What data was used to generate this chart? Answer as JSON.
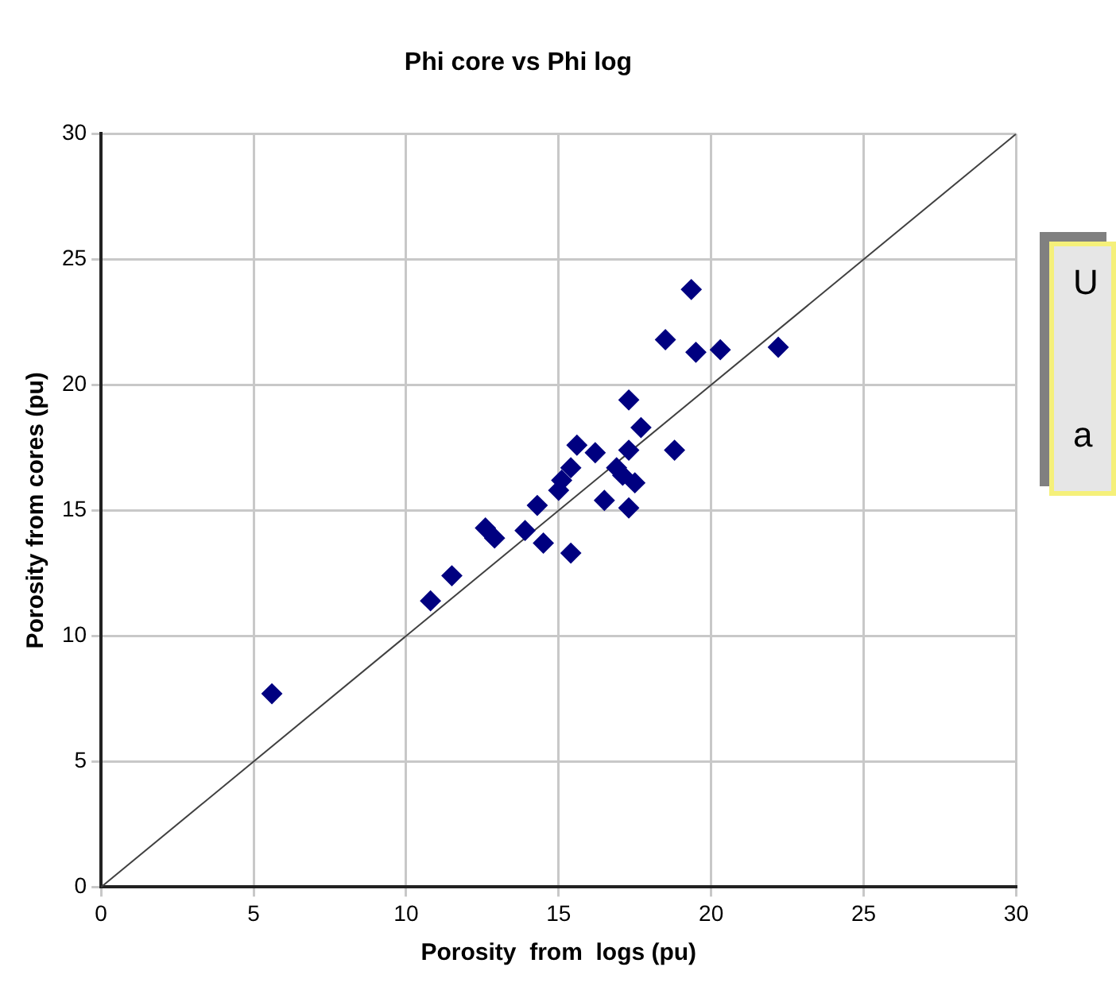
{
  "chart_data": {
    "type": "scatter",
    "title": "Phi core vs Phi log",
    "xlabel": "Porosity  from  logs (pu)",
    "ylabel": "Porosity from cores (pu)",
    "xlim": [
      0,
      30
    ],
    "ylim": [
      0,
      30
    ],
    "xticks": [
      0,
      5,
      10,
      15,
      20,
      25,
      30
    ],
    "yticks": [
      0,
      5,
      10,
      15,
      20,
      25,
      30
    ],
    "grid": true,
    "marker": "diamond",
    "annotations": [
      "U",
      "a"
    ],
    "series": [
      {
        "color": "#000080",
        "x": [
          5.6,
          10.8,
          11.5,
          12.6,
          12.9,
          13.9,
          14.3,
          14.5,
          15.4,
          15.0,
          15.1,
          15.4,
          15.6,
          16.2,
          16.5,
          16.9,
          17.1,
          17.3,
          17.3,
          17.5,
          17.3,
          17.7,
          18.8,
          18.5,
          19.35,
          19.5,
          20.3,
          22.2
        ],
        "values": [
          7.7,
          11.4,
          12.4,
          14.3,
          13.9,
          14.2,
          15.2,
          13.7,
          13.3,
          15.8,
          16.2,
          16.7,
          17.6,
          17.3,
          15.4,
          16.7,
          16.4,
          17.4,
          15.1,
          16.1,
          19.4,
          18.3,
          17.4,
          21.8,
          23.8,
          21.3,
          21.4,
          21.5
        ]
      },
      {
        "type": "line",
        "marker": "none",
        "color": "#404040",
        "x": [
          0,
          30
        ],
        "values": [
          0,
          30
        ]
      }
    ]
  }
}
